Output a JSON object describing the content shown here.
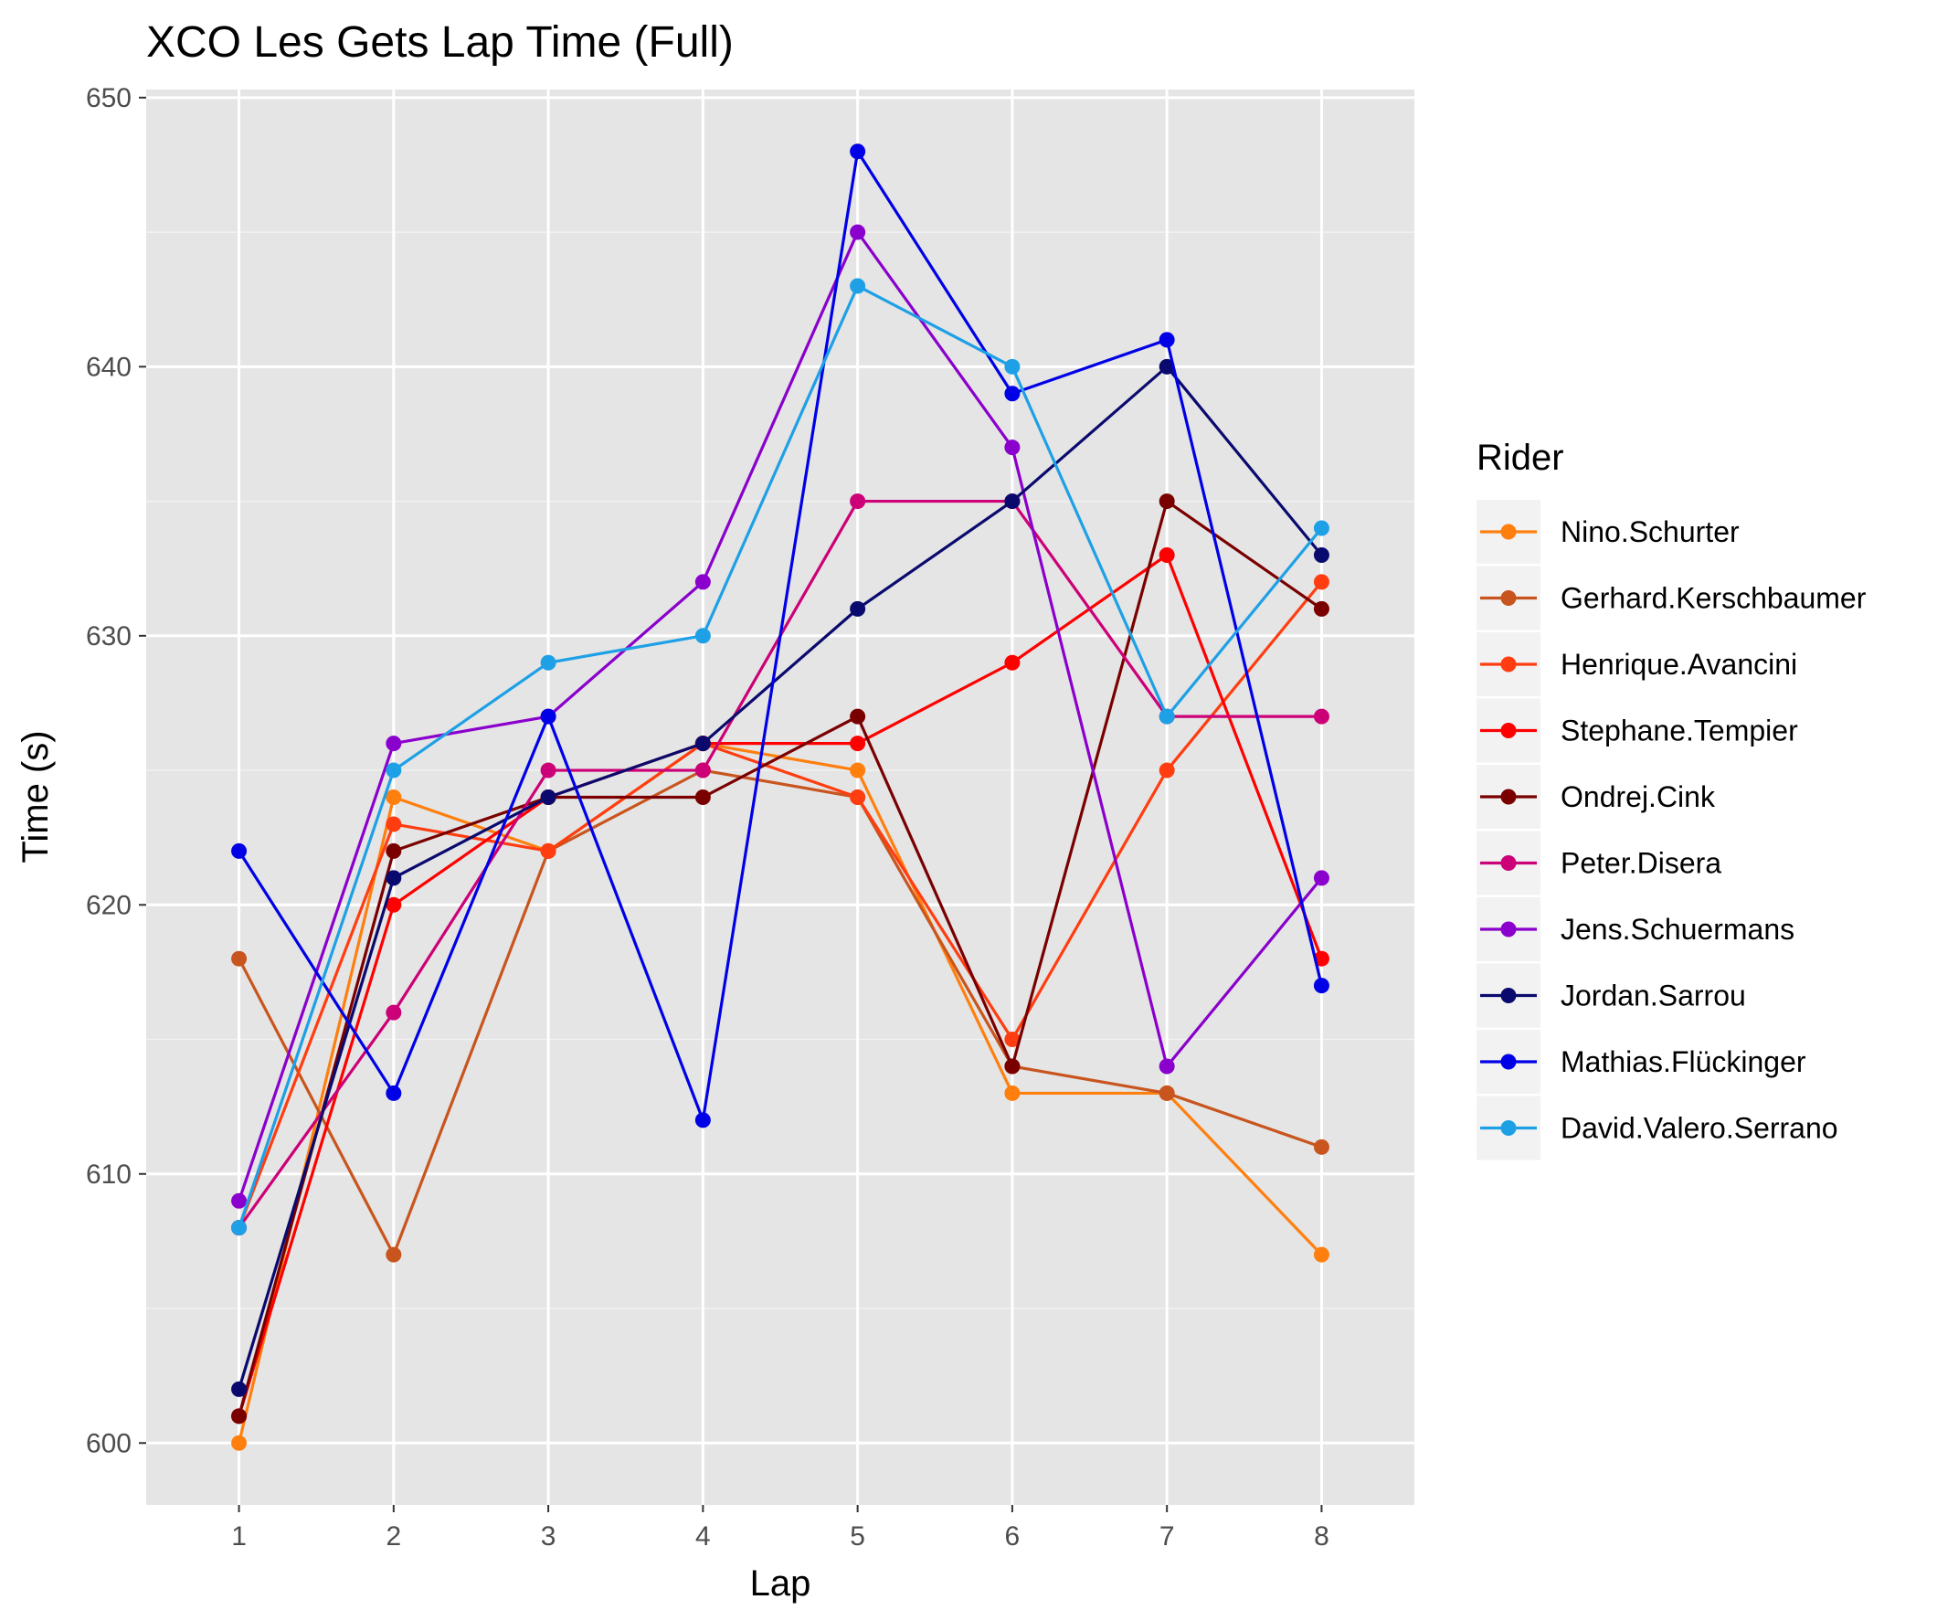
{
  "chart_data": {
    "type": "line",
    "title": "XCO Les Gets Lap Time (Full)",
    "xlabel": "Lap",
    "ylabel": "Time (s)",
    "x": [
      1,
      2,
      3,
      4,
      5,
      6,
      7,
      8
    ],
    "xlim": [
      0.4,
      8.6
    ],
    "ylim": [
      597.7,
      650.3
    ],
    "x_ticks": [
      1,
      2,
      3,
      4,
      5,
      6,
      7,
      8
    ],
    "y_ticks": [
      600,
      610,
      620,
      630,
      640,
      650
    ],
    "grid": true,
    "legend_title": "Rider",
    "legend_position": "right",
    "series": [
      {
        "name": "Nino.Schurter",
        "color": "#ff7f0e",
        "values": [
          600,
          624,
          622,
          626,
          625,
          613,
          613,
          607
        ]
      },
      {
        "name": "Gerhard.Kerschbaumer",
        "color": "#c8551e",
        "values": [
          618,
          607,
          622,
          625,
          624,
          614,
          613,
          611
        ]
      },
      {
        "name": "Henrique.Avancini",
        "color": "#ff3d10",
        "values": [
          608,
          623,
          622,
          626,
          624,
          615,
          625,
          632
        ]
      },
      {
        "name": "Stephane.Tempier",
        "color": "#ff0000",
        "values": [
          601,
          620,
          624,
          626,
          626,
          629,
          633,
          618
        ]
      },
      {
        "name": "Ondrej.Cink",
        "color": "#7a0000",
        "values": [
          601,
          622,
          624,
          624,
          627,
          614,
          635,
          631
        ]
      },
      {
        "name": "Peter.Disera",
        "color": "#cc0077",
        "values": [
          608,
          616,
          625,
          625,
          635,
          635,
          627,
          627
        ]
      },
      {
        "name": "Jens.Schuermans",
        "color": "#8a00cc",
        "values": [
          609,
          626,
          627,
          632,
          645,
          637,
          614,
          621
        ]
      },
      {
        "name": "Jordan.Sarrou",
        "color": "#0a0a6e",
        "values": [
          602,
          621,
          624,
          626,
          631,
          635,
          640,
          633
        ]
      },
      {
        "name": "Mathias.Flückinger",
        "color": "#0000e6",
        "values": [
          622,
          613,
          627,
          612,
          648,
          639,
          641,
          617
        ]
      },
      {
        "name": "David.Valero.Serrano",
        "color": "#1ea0e6",
        "values": [
          608,
          625,
          629,
          630,
          643,
          640,
          627,
          634
        ]
      }
    ]
  }
}
